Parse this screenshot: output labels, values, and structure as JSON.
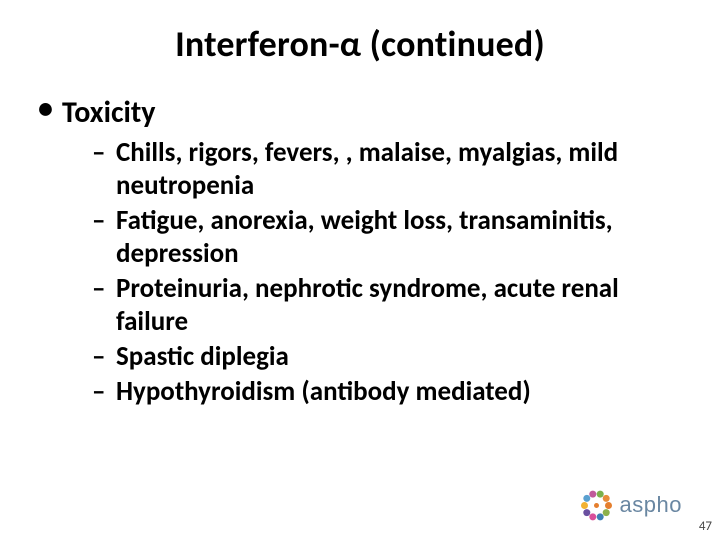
{
  "title": "Interferon-α (continued)",
  "heading": "Toxicity",
  "items": [
    "Chills, rigors, fevers, , malaise, myalgias, mild neutropenia",
    "Fatigue, anorexia, weight loss, transaminitis, depression",
    "Proteinuria, nephrotic syndrome, acute renal failure",
    "Spastic diplegia",
    "Hypothyroidism (antibody mediated)"
  ],
  "page_number": "47",
  "logo": {
    "text": "aspho",
    "dot_colors": [
      "#e57f2e",
      "#8db14b",
      "#3f7fb5",
      "#d94f9a",
      "#6a4fa0",
      "#f2b233",
      "#5aa0d0",
      "#c05a9a",
      "#7bb04b",
      "#e88c3a"
    ]
  },
  "colors": {
    "text": "#000000",
    "background": "#ffffff",
    "logo_text": "#6a87a2",
    "pagenum": "#444444"
  },
  "fontsizes": {
    "title": 36,
    "l1": 30,
    "l2": 27,
    "logo": 22,
    "pagenum": 13
  }
}
